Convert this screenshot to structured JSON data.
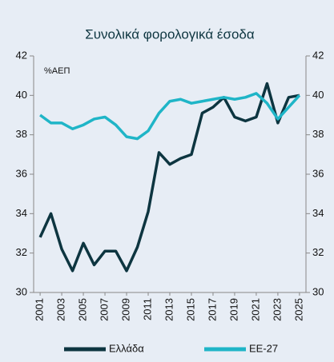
{
  "chart_data": {
    "type": "line",
    "title": "Συνολικά φορολογικά έσοδα",
    "annotation": "%ΑΕΠ",
    "x": [
      2001,
      2002,
      2003,
      2004,
      2005,
      2006,
      2007,
      2008,
      2009,
      2010,
      2011,
      2012,
      2013,
      2014,
      2015,
      2016,
      2017,
      2018,
      2019,
      2020,
      2021,
      2022,
      2023,
      2024,
      2025
    ],
    "series": [
      {
        "name": "Ελλάδα",
        "color": "#0d3540",
        "values": [
          32.8,
          34.0,
          32.2,
          31.1,
          32.5,
          31.4,
          32.1,
          32.1,
          31.1,
          32.3,
          34.1,
          37.1,
          36.5,
          36.8,
          37.0,
          39.1,
          39.4,
          39.9,
          38.9,
          38.7,
          38.9,
          40.6,
          38.6,
          39.9,
          40.0
        ]
      },
      {
        "name": "ΕΕ-27",
        "color": "#1fb5c7",
        "values": [
          39.0,
          38.6,
          38.6,
          38.3,
          38.5,
          38.8,
          38.9,
          38.5,
          37.9,
          37.8,
          38.2,
          39.1,
          39.7,
          39.8,
          39.6,
          39.7,
          39.8,
          39.9,
          39.8,
          39.9,
          40.1,
          39.6,
          38.8,
          39.4,
          40.0
        ]
      }
    ],
    "xlim": [
      2000.4,
      2025.6
    ],
    "xticks": [
      2001,
      2003,
      2005,
      2007,
      2009,
      2011,
      2013,
      2015,
      2017,
      2019,
      2021,
      2023,
      2025
    ],
    "ylim": [
      30,
      42
    ],
    "yticks": [
      30,
      32,
      34,
      36,
      38,
      40,
      42
    ],
    "y2lim": [
      30,
      42
    ],
    "y2ticks": [
      30,
      32,
      34,
      36,
      38,
      40,
      42
    ],
    "legend": "bottom"
  }
}
